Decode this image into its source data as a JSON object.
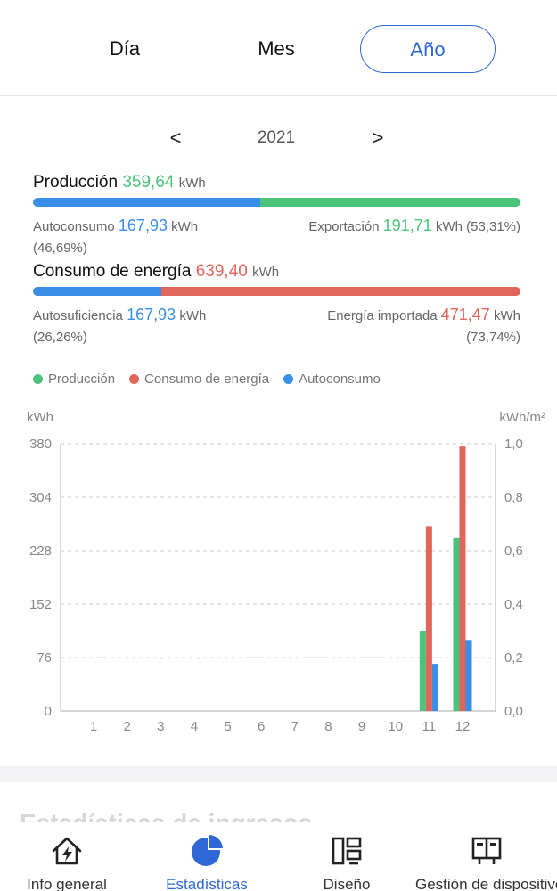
{
  "tabs": [
    {
      "label": "Día",
      "active": false
    },
    {
      "label": "Mes",
      "active": false
    },
    {
      "label": "Año",
      "active": true
    }
  ],
  "year_nav": {
    "prev": "<",
    "year": "2021",
    "next": ">"
  },
  "production": {
    "label": "Producción",
    "value": "359,64",
    "unit": "kWh",
    "self_consumption": {
      "label": "Autoconsumo",
      "value": "167,93",
      "unit": "kWh",
      "percent": "(46,69%)",
      "fraction": 0.4669
    },
    "export": {
      "label": "Exportación",
      "value": "191,71",
      "unit": "kWh",
      "percent": "(53,31%)",
      "fraction": 0.5331
    }
  },
  "consumption": {
    "label": "Consumo de energía",
    "value": "639,40",
    "unit": "kWh",
    "self_sufficiency": {
      "label": "Autosuficiencia",
      "value": "167,93",
      "unit": "kWh",
      "percent": "(26,26%)",
      "fraction": 0.2626
    },
    "imported": {
      "label": "Energía importada",
      "value": "471,47",
      "unit": "kWh",
      "percent": "(73,74%)",
      "fraction": 0.7374
    }
  },
  "colors": {
    "green": "#4cc37a",
    "red": "#e0655a",
    "blue": "#3b8ee6",
    "accent": "#2f68d6"
  },
  "chart_data": {
    "type": "bar",
    "categories": [
      "1",
      "2",
      "3",
      "4",
      "5",
      "6",
      "7",
      "8",
      "9",
      "10",
      "11",
      "12"
    ],
    "series": [
      {
        "name": "Producción",
        "color": "#4cc37a",
        "values": [
          0,
          0,
          0,
          0,
          0,
          0,
          0,
          0,
          0,
          0,
          114,
          246
        ]
      },
      {
        "name": "Consumo de energía",
        "color": "#e0655a",
        "values": [
          0,
          0,
          0,
          0,
          0,
          0,
          0,
          0,
          0,
          0,
          263,
          376
        ]
      },
      {
        "name": "Autoconsumo",
        "color": "#3b8ee6",
        "values": [
          0,
          0,
          0,
          0,
          0,
          0,
          0,
          0,
          0,
          0,
          67,
          101
        ]
      }
    ],
    "ylabel": "kWh",
    "ylabel_right": "kWh/m²",
    "ylim": [
      0,
      380
    ],
    "y_ticks": [
      "0",
      "76",
      "152",
      "228",
      "304",
      "380"
    ],
    "ylim_right": [
      0,
      1
    ],
    "y_ticks_right": [
      "0,0",
      "0,2",
      "0,4",
      "0,6",
      "0,8",
      "1,0"
    ],
    "grid": true,
    "legend": "top-left"
  },
  "section_title": "Estadísticas de ingresos",
  "bottom_nav": [
    {
      "label": "Info general",
      "icon": "lightning-house-icon",
      "active": false
    },
    {
      "label": "Estadísticas",
      "icon": "pie-chart-icon",
      "active": true
    },
    {
      "label": "Diseño",
      "icon": "layout-icon",
      "active": false
    },
    {
      "label": "Gestión de dispositivos",
      "icon": "device-management-icon",
      "active": false
    }
  ]
}
